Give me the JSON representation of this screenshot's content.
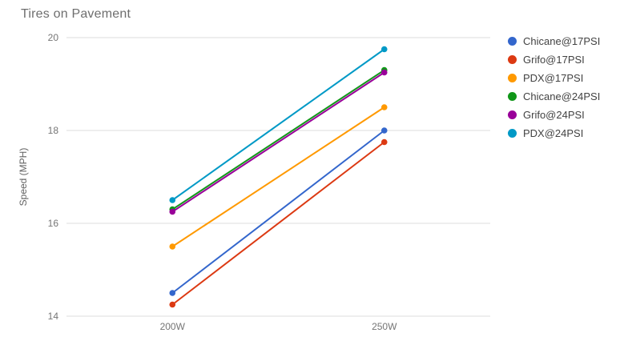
{
  "title": "Tires on Pavement",
  "colors": {
    "background": "#ffffff",
    "title_text": "#6e6e6e",
    "axis_text": "#757575",
    "legend_text": "#424242",
    "gridline": "#dcdcdc"
  },
  "chart_data": {
    "type": "line",
    "title": "Tires on Pavement",
    "categories": [
      "200W",
      "250W"
    ],
    "series": [
      {
        "name": "Chicane@17PSI",
        "color": "#3366CC",
        "values": [
          14.5,
          18.0
        ]
      },
      {
        "name": "Grifo@17PSI",
        "color": "#DC3912",
        "values": [
          14.25,
          17.75
        ]
      },
      {
        "name": "PDX@17PSI",
        "color": "#FF9900",
        "values": [
          15.5,
          18.5
        ]
      },
      {
        "name": "Chicane@24PSI",
        "color": "#109618",
        "values": [
          16.3,
          19.3
        ]
      },
      {
        "name": "Grifo@24PSI",
        "color": "#990099",
        "values": [
          16.25,
          19.25
        ]
      },
      {
        "name": "PDX@24PSI",
        "color": "#0099C6",
        "values": [
          16.5,
          19.75
        ]
      }
    ],
    "xlabel": "",
    "ylabel": "Speed (MPH)",
    "ylim": [
      14,
      20
    ],
    "yticks": [
      14,
      16,
      18,
      20
    ],
    "grid": true,
    "legend_position": "right",
    "point_markers": true
  }
}
